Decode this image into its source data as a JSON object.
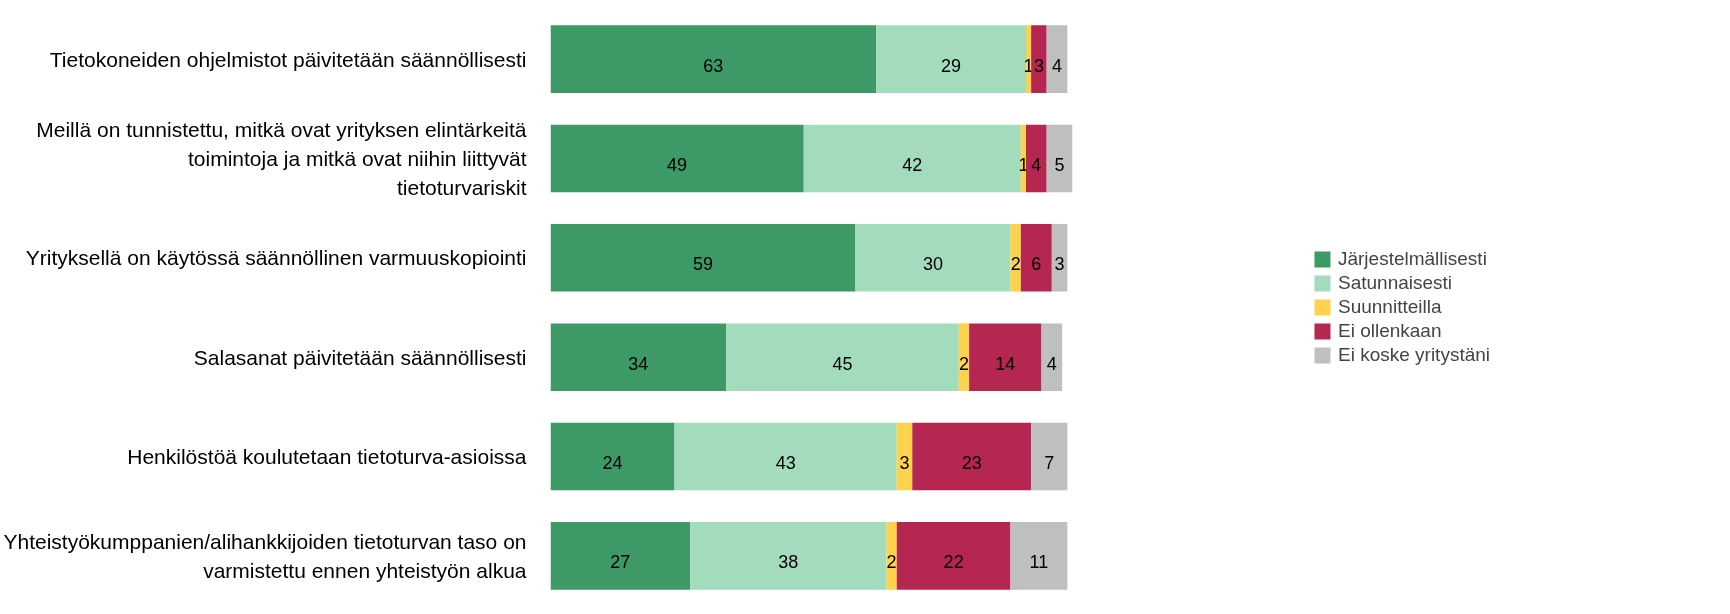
{
  "chart_data": {
    "type": "bar",
    "orientation": "horizontal",
    "stacked": true,
    "data_labels": true,
    "legend": "right",
    "grid": false,
    "tick_labels": "y",
    "xlim": [
      0,
      101
    ],
    "categories": [
      "Tietokoneiden ohjelmistot päivitetään säännöllisesti",
      "Meillä on tunnistettu, mitkä ovat yrityksen elintärkeitä toimintoja ja mitkä ovat niihin liittyvät tietoturvariskit",
      "Yrityksellä on käytössä säännöllinen varmuuskopiointi",
      "Salasanat päivitetään säännöllisesti",
      "Henkilöstöä koulutetaan tietoturva-asioissa",
      "Yhteistyökumppanien/alihankkijoiden tietoturvan taso on varmistettu ennen yhteistyön alkua"
    ],
    "series": [
      {
        "name": "Järjestelmällisesti",
        "color": "#3d9966",
        "values": [
          63,
          49,
          59,
          34,
          24,
          27
        ]
      },
      {
        "name": "Satunnaisesti",
        "color": "#a3dbbd",
        "values": [
          29,
          42,
          30,
          45,
          43,
          38
        ]
      },
      {
        "name": "Suunnitteilla",
        "color": "#fdd34d",
        "values": [
          1,
          1,
          2,
          2,
          3,
          2
        ]
      },
      {
        "name": "Ei ollenkaan",
        "color": "#b52650",
        "values": [
          3,
          4,
          6,
          14,
          23,
          22
        ]
      },
      {
        "name": "Ei koske yritystäni",
        "color": "#bfbfbf",
        "values": [
          4,
          5,
          3,
          4,
          7,
          11
        ]
      }
    ]
  }
}
